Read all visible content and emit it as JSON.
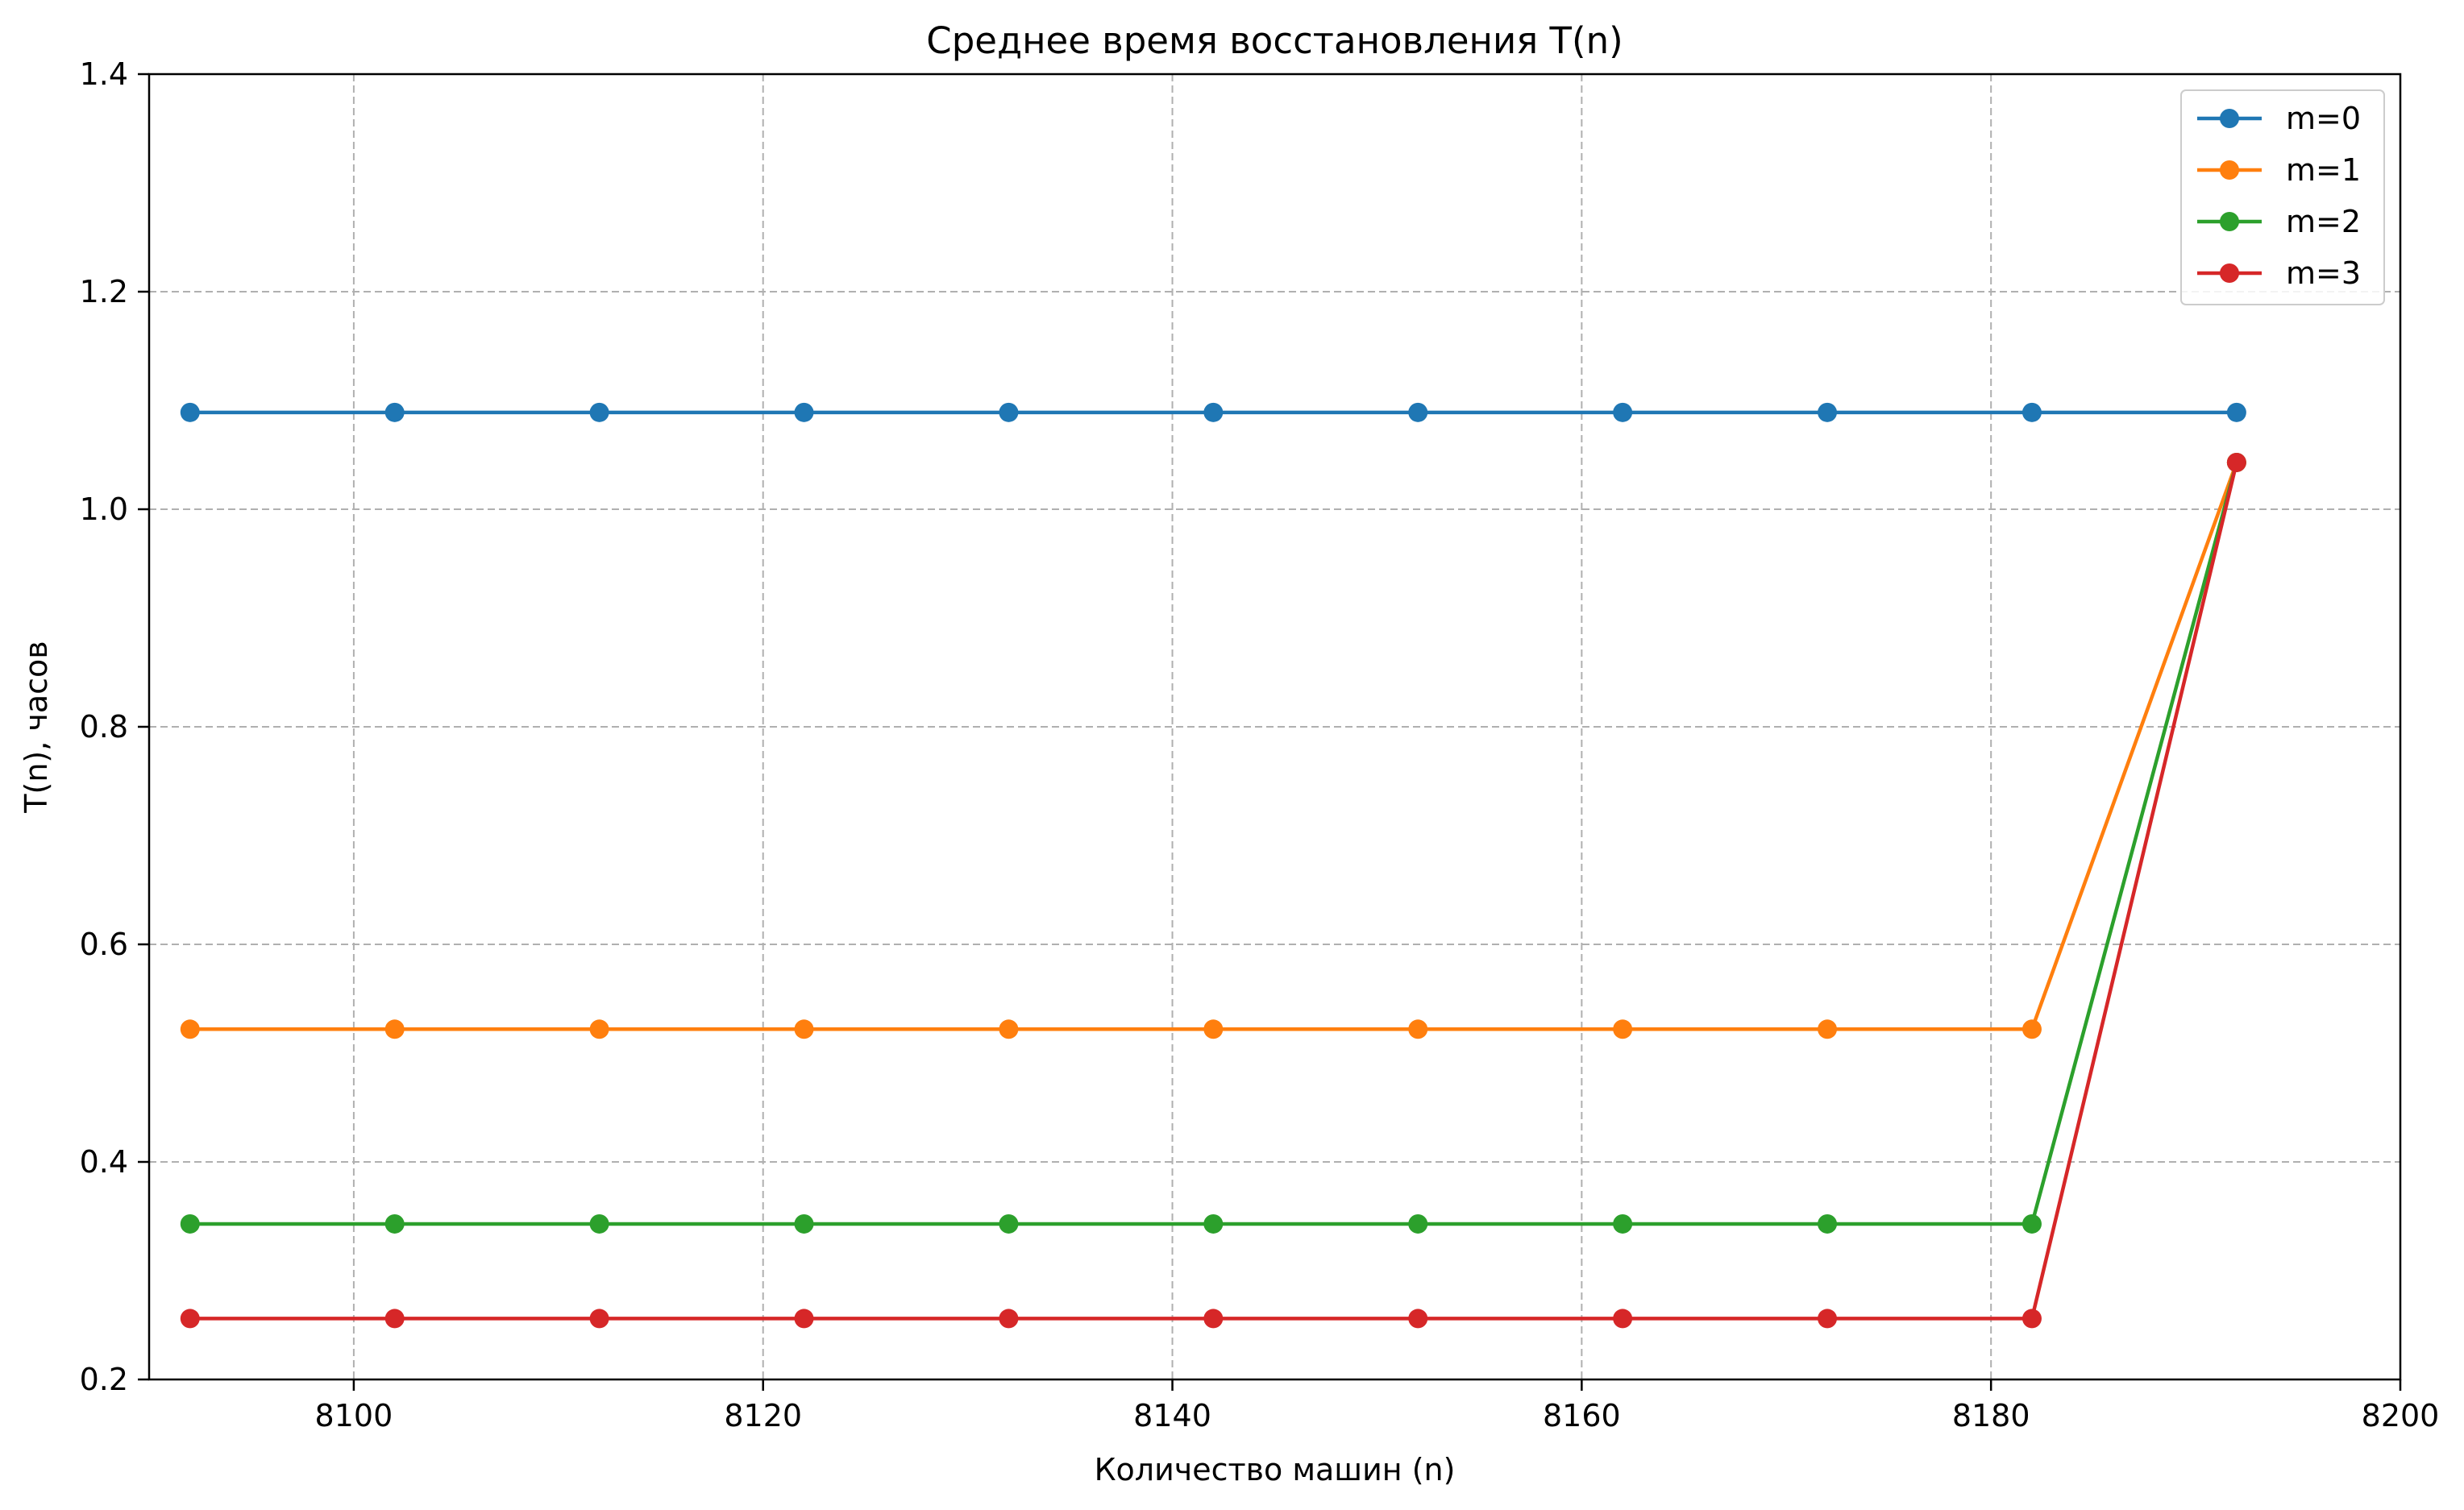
{
  "chart_data": {
    "type": "line",
    "title": "Среднее время восстановления T(n)",
    "xlabel": "Количество машин (n)",
    "ylabel": "T(n), часов",
    "xlim": [
      8090,
      8200
    ],
    "ylim": [
      0.2,
      1.4
    ],
    "xticks": [
      8100,
      8120,
      8140,
      8160,
      8180,
      8200
    ],
    "yticks": [
      0.2,
      0.4,
      0.6,
      0.8,
      1.0,
      1.2,
      1.4
    ],
    "xtick_labels": [
      "8100",
      "8120",
      "8140",
      "8160",
      "8180",
      "8200"
    ],
    "ytick_labels": [
      "0.2",
      "0.4",
      "0.6",
      "0.8",
      "1.0",
      "1.2",
      "1.4"
    ],
    "grid": true,
    "legend_position": "top-right",
    "x": [
      8092,
      8102,
      8112,
      8122,
      8132,
      8142,
      8152,
      8162,
      8172,
      8182,
      8192
    ],
    "series": [
      {
        "name": "m=0",
        "color": "#1f77b4",
        "values": [
          1.089,
          1.089,
          1.089,
          1.089,
          1.089,
          1.089,
          1.089,
          1.089,
          1.089,
          1.089,
          1.089
        ]
      },
      {
        "name": "m=1",
        "color": "#ff7f0e",
        "values": [
          0.522,
          0.522,
          0.522,
          0.522,
          0.522,
          0.522,
          0.522,
          0.522,
          0.522,
          0.522,
          1.043
        ]
      },
      {
        "name": "m=2",
        "color": "#2ca02c",
        "values": [
          0.343,
          0.343,
          0.343,
          0.343,
          0.343,
          0.343,
          0.343,
          0.343,
          0.343,
          0.343,
          1.043
        ]
      },
      {
        "name": "m=3",
        "color": "#d62728",
        "values": [
          0.256,
          0.256,
          0.256,
          0.256,
          0.256,
          0.256,
          0.256,
          0.256,
          0.256,
          0.256,
          1.043
        ]
      }
    ]
  }
}
